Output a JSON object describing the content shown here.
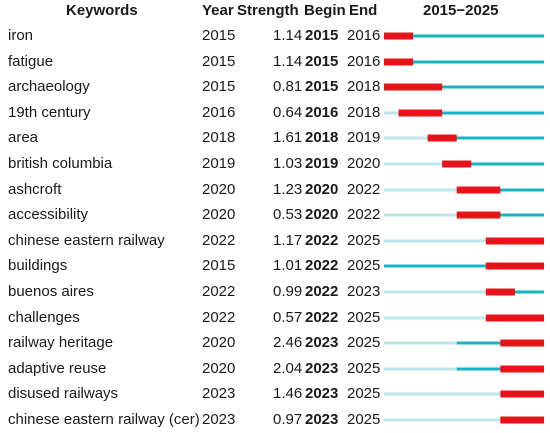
{
  "headers": {
    "keywords": "Keywords",
    "year": "Year",
    "strength": "Strength",
    "begin": "Begin",
    "end": "End",
    "range": "2015−2025"
  },
  "colors": {
    "active": "#1ab3c4",
    "inactive": "#bfe6ec",
    "burst": "#e8141a"
  },
  "chart_data": {
    "type": "table",
    "timeline_start": 2015,
    "timeline_end": 2025,
    "columns": [
      "Keywords",
      "Year",
      "Strength",
      "Begin",
      "End",
      "2015−2025"
    ],
    "rows": [
      {
        "keyword": "iron",
        "year": "2015",
        "strength": "1.14",
        "begin": "2015",
        "end": "2016"
      },
      {
        "keyword": "fatigue",
        "year": "2015",
        "strength": "1.14",
        "begin": "2015",
        "end": "2016"
      },
      {
        "keyword": "archaeology",
        "year": "2015",
        "strength": "0.81",
        "begin": "2015",
        "end": "2018"
      },
      {
        "keyword": "19th century",
        "year": "2016",
        "strength": "0.64",
        "begin": "2016",
        "end": "2018"
      },
      {
        "keyword": "area",
        "year": "2018",
        "strength": "1.61",
        "begin": "2018",
        "end": "2019"
      },
      {
        "keyword": "british columbia",
        "year": "2019",
        "strength": "1.03",
        "begin": "2019",
        "end": "2020"
      },
      {
        "keyword": "ashcroft",
        "year": "2020",
        "strength": "1.23",
        "begin": "2020",
        "end": "2022"
      },
      {
        "keyword": "accessibility",
        "year": "2020",
        "strength": "0.53",
        "begin": "2020",
        "end": "2022"
      },
      {
        "keyword": "chinese eastern railway",
        "year": "2022",
        "strength": "1.17",
        "begin": "2022",
        "end": "2025"
      },
      {
        "keyword": "buildings",
        "year": "2015",
        "strength": "1.01",
        "begin": "2022",
        "end": "2025"
      },
      {
        "keyword": "buenos aires",
        "year": "2022",
        "strength": "0.99",
        "begin": "2022",
        "end": "2023"
      },
      {
        "keyword": "challenges",
        "year": "2022",
        "strength": "0.57",
        "begin": "2022",
        "end": "2025"
      },
      {
        "keyword": "railway heritage",
        "year": "2020",
        "strength": "2.46",
        "begin": "2023",
        "end": "2025"
      },
      {
        "keyword": "adaptive reuse",
        "year": "2020",
        "strength": "2.04",
        "begin": "2023",
        "end": "2025"
      },
      {
        "keyword": "disused railways",
        "year": "2023",
        "strength": "1.46",
        "begin": "2023",
        "end": "2025"
      },
      {
        "keyword": "chinese eastern railway (cer)",
        "year": "2023",
        "strength": "0.97",
        "begin": "2023",
        "end": "2025"
      }
    ]
  }
}
